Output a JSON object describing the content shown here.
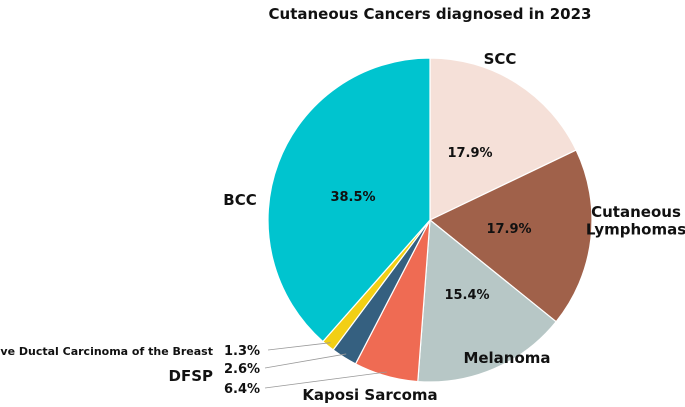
{
  "chart_data": {
    "type": "pie",
    "title": "Cutaneous Cancers diagnosed in 2023",
    "slices": [
      {
        "label": "SCC",
        "value": 17.9,
        "value_label": "17.9%",
        "color": "#f5e0d8"
      },
      {
        "label": "Cutaneous Lymphomas",
        "label_lines": [
          "Cutaneous",
          "Lymphomas"
        ],
        "value": 17.9,
        "value_label": "17.9%",
        "color": "#a0614a"
      },
      {
        "label": "Melanoma",
        "value": 15.4,
        "value_label": "15.4%",
        "color": "#b7c7c6"
      },
      {
        "label": "Kaposi Sarcoma",
        "value": 6.4,
        "value_label": "6.4%",
        "color": "#ef6b53"
      },
      {
        "label": "DFSP",
        "value": 2.6,
        "value_label": "2.6%",
        "color": "#356080"
      },
      {
        "label": "Invasive Ductal Carcinoma of the Breast",
        "value": 1.3,
        "value_label": "1.3%",
        "color": "#f2cf15"
      },
      {
        "label": "BCC",
        "value": 38.5,
        "value_label": "38.5%",
        "color": "#00c4cf"
      }
    ]
  }
}
